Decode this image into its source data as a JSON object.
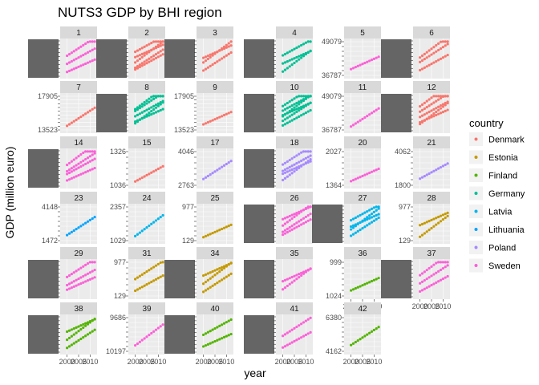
{
  "chart_data": {
    "type": "scatter",
    "title": "NUTS3 GDP by BHI region",
    "xlabel": "year",
    "ylabel": "GDP (million euro)",
    "x_ticks": [
      "2000",
      "2005",
      "2010"
    ],
    "xlim": [
      1997,
      2013
    ],
    "legend": {
      "title": "country",
      "position": "right",
      "entries": [
        {
          "name": "Denmark",
          "color": "#F8766D"
        },
        {
          "name": "Estonia",
          "color": "#C49A00"
        },
        {
          "name": "Finland",
          "color": "#53B400"
        },
        {
          "name": "Germany",
          "color": "#00C094"
        },
        {
          "name": "Latvia",
          "color": "#00B6EB"
        },
        {
          "name": "Lithuania",
          "color": "#06A4FF"
        },
        {
          "name": "Poland",
          "color": "#A58AFF"
        },
        {
          "name": "Sweden",
          "color": "#FB61D7"
        }
      ]
    },
    "facet_scales": "free_y",
    "facets": [
      {
        "panel": "1",
        "country": "Sweden",
        "series": 3,
        "dense_y": true,
        "y_ticks": []
      },
      {
        "panel": "2",
        "country": "Denmark",
        "series": 5,
        "dense_y": true,
        "y_ticks": []
      },
      {
        "panel": "3",
        "country": "Denmark",
        "series": 3,
        "dense_y": true,
        "y_ticks": []
      },
      {
        "panel": "4",
        "country": "Germany",
        "series": 3,
        "dense_y": true,
        "y_ticks": []
      },
      {
        "panel": "5",
        "country": "Sweden",
        "series": 1,
        "dense_y": false,
        "y_ticks": [
          "49079",
          "",
          "",
          "",
          "",
          "",
          "",
          "36787"
        ]
      },
      {
        "panel": "6",
        "country": "Denmark",
        "series": 3,
        "dense_y": true,
        "y_ticks": []
      },
      {
        "panel": "7",
        "country": "Denmark",
        "series": 1,
        "dense_y": false,
        "y_ticks": [
          "17905",
          "",
          "",
          "",
          "",
          "",
          "",
          "",
          "",
          "13523"
        ]
      },
      {
        "panel": "8",
        "country": "Germany",
        "series": 5,
        "dense_y": true,
        "y_ticks": []
      },
      {
        "panel": "9",
        "country": "Denmark",
        "series": 1,
        "dense_y": false,
        "y_ticks": [
          "17905",
          "",
          "",
          "",
          "",
          "",
          "",
          "",
          "",
          "13523"
        ]
      },
      {
        "panel": "10",
        "country": "Germany",
        "series": 6,
        "dense_y": true,
        "y_ticks": []
      },
      {
        "panel": "11",
        "country": "Sweden",
        "series": 1,
        "dense_y": false,
        "y_ticks": [
          "49079",
          "",
          "",
          "",
          "",
          "",
          "",
          "36787"
        ]
      },
      {
        "panel": "12",
        "country": "Denmark",
        "series": 5,
        "dense_y": true,
        "y_ticks": []
      },
      {
        "panel": "14",
        "country": "Sweden",
        "series": 4,
        "dense_y": true,
        "y_ticks": []
      },
      {
        "panel": "15",
        "country": "Denmark",
        "series": 1,
        "dense_y": false,
        "y_ticks": [
          "1326",
          "",
          "",
          "",
          "",
          "",
          "1036"
        ]
      },
      {
        "panel": "17",
        "country": "Poland",
        "series": 1,
        "dense_y": false,
        "y_ticks": [
          "4046",
          "",
          "",
          "",
          "",
          "",
          "2763"
        ]
      },
      {
        "panel": "18",
        "country": "Poland",
        "series": 4,
        "dense_y": true,
        "y_ticks": []
      },
      {
        "panel": "20",
        "country": "Sweden",
        "series": 1,
        "dense_y": false,
        "y_ticks": [
          "2027",
          "",
          "",
          "",
          "",
          "",
          "1364"
        ]
      },
      {
        "panel": "21",
        "country": "Poland",
        "series": 1,
        "dense_y": false,
        "y_ticks": [
          "4062",
          "",
          "",
          "",
          "",
          "",
          "1800"
        ]
      },
      {
        "panel": "23",
        "country": "Lithuania",
        "series": 1,
        "dense_y": false,
        "y_ticks": [
          "4148",
          "",
          "",
          "",
          "",
          "",
          "",
          "1472"
        ]
      },
      {
        "panel": "24",
        "country": "Latvia",
        "series": 1,
        "dense_y": false,
        "y_ticks": [
          "2357",
          "",
          "",
          "",
          "",
          "",
          "",
          "1029"
        ]
      },
      {
        "panel": "25",
        "country": "Estonia",
        "series": 1,
        "dense_y": false,
        "y_ticks": [
          "977",
          "",
          "",
          "",
          "",
          "",
          "",
          "129"
        ]
      },
      {
        "panel": "26",
        "country": "Sweden",
        "series": 4,
        "dense_y": true,
        "y_ticks": []
      },
      {
        "panel": "27",
        "country": "Latvia",
        "series": 4,
        "dense_y": true,
        "y_ticks": []
      },
      {
        "panel": "28",
        "country": "Estonia",
        "series": 2,
        "dense_y": false,
        "y_ticks": [
          "977",
          "",
          "",
          "",
          "",
          "",
          "",
          "129"
        ]
      },
      {
        "panel": "29",
        "country": "Sweden",
        "series": 3,
        "dense_y": true,
        "y_ticks": []
      },
      {
        "panel": "31",
        "country": "Estonia",
        "series": 2,
        "dense_y": false,
        "y_ticks": [
          "977",
          "",
          "",
          "",
          "",
          "",
          "129"
        ]
      },
      {
        "panel": "34",
        "country": "Estonia",
        "series": 3,
        "dense_y": true,
        "y_ticks": []
      },
      {
        "panel": "35",
        "country": "Sweden",
        "series": 2,
        "dense_y": true,
        "y_ticks": []
      },
      {
        "panel": "36",
        "country": "Finland",
        "series": 1,
        "dense_y": false,
        "y_ticks": [
          "999",
          "",
          "",
          "",
          "",
          "",
          "1024"
        ]
      },
      {
        "panel": "37",
        "country": "Sweden",
        "series": 3,
        "dense_y": true,
        "y_ticks": []
      },
      {
        "panel": "38",
        "country": "Finland",
        "series": 3,
        "dense_y": true,
        "y_ticks": []
      },
      {
        "panel": "39",
        "country": "Sweden",
        "series": 1,
        "dense_y": false,
        "y_ticks": [
          "9686",
          "",
          "",
          "",
          "",
          "",
          "",
          "10197"
        ]
      },
      {
        "panel": "40",
        "country": "Finland",
        "series": 2,
        "dense_y": true,
        "y_ticks": []
      },
      {
        "panel": "41",
        "country": "Sweden",
        "series": 2,
        "dense_y": true,
        "y_ticks": []
      },
      {
        "panel": "42",
        "country": "Finland",
        "series": 1,
        "dense_y": false,
        "y_ticks": [
          "6380",
          "",
          "",
          "",
          "",
          "",
          "",
          "4162"
        ]
      }
    ]
  }
}
